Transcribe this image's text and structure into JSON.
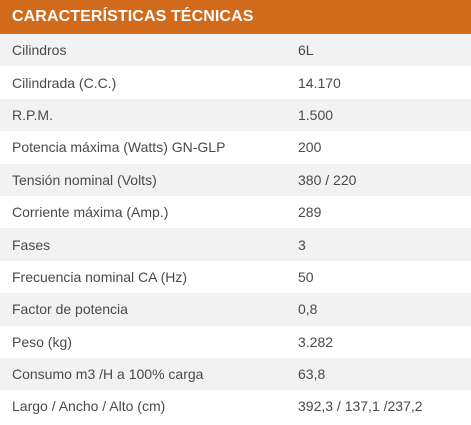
{
  "header": {
    "title": "CARACTERÍSTICAS TÉCNICAS"
  },
  "rows": [
    {
      "label": "Cilindros",
      "value": "6L"
    },
    {
      "label": "Cilindrada (C.C.)",
      "value": "14.170"
    },
    {
      "label": "R.P.M.",
      "value": "1.500"
    },
    {
      "label": "Potencia máxima (Watts) GN-GLP",
      "value": "200"
    },
    {
      "label": "Tensión nominal (Volts)",
      "value": "380 / 220"
    },
    {
      "label": "Corriente máxima (Amp.)",
      "value": "289"
    },
    {
      "label": "Fases",
      "value": "3"
    },
    {
      "label": "Frecuencia nominal CA (Hz)",
      "value": "50"
    },
    {
      "label": "Factor de potencia",
      "value": "0,8"
    },
    {
      "label": "Peso (kg)",
      "value": "3.282"
    },
    {
      "label": "Consumo m3 /H a 100% carga",
      "value": "63,8"
    },
    {
      "label": "Largo / Ancho / Alto (cm)",
      "value": "392,3 / 137,1 /237,2"
    }
  ],
  "colors": {
    "header_bg": "#d16a1b",
    "header_text": "#ffffff",
    "row_odd_bg": "#f2f2f2",
    "row_even_bg": "#ffffff",
    "text": "#4a4a4a"
  }
}
